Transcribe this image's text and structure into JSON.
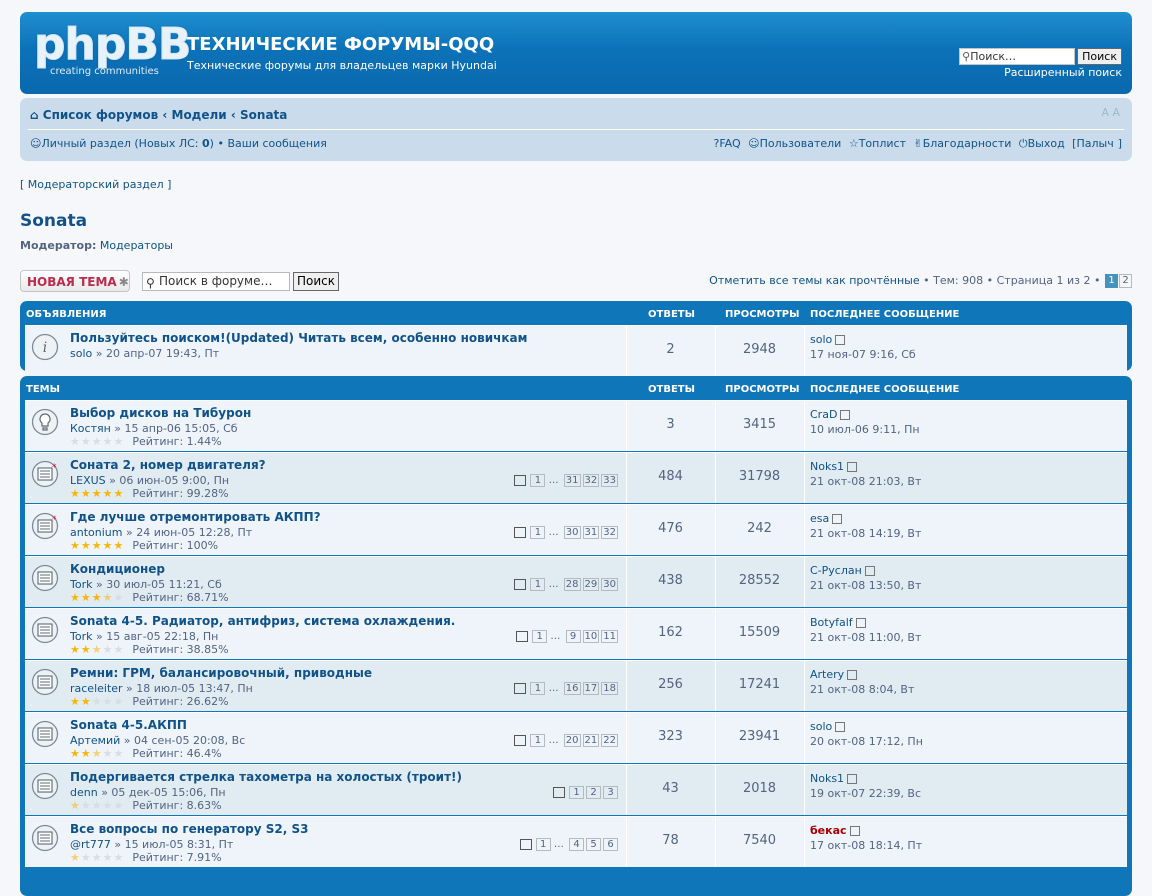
{
  "header": {
    "logo_main": "phpBB",
    "logo_sub": "creating communities",
    "site_title": "ТЕХНИЧЕСКИЕ ФОРУМЫ-QQQ",
    "site_desc": "Технические форумы для владельцев марки Hyundai",
    "search_placeholder": "Поиск…",
    "search_button": "Поиск",
    "advanced_search": "Расширенный поиск"
  },
  "navbar": {
    "crumbs": [
      "Список форумов",
      "Модели",
      "Sonata"
    ],
    "font_size": "A A",
    "personal": "Личный раздел",
    "new_pm_label": "(Новых ЛС: ",
    "new_pm_count": "0",
    "new_pm_close": ")",
    "bullet": "•",
    "your_posts": "Ваши сообщения",
    "faq": "FAQ",
    "users": "Пользователи",
    "toplist": "Топлист",
    "thanks": "Благодарности",
    "logout": "Выход",
    "user": "Палыч",
    "user_open": "[",
    "user_close": "]"
  },
  "mod_section": "[ Модераторский раздел ]",
  "forum": {
    "title": "Sonata",
    "moderator_label": "Модератор:",
    "moderator_value": "Модераторы"
  },
  "actions": {
    "new_topic": "НОВАЯ ТЕМА",
    "new_topic_icon": "star-icon",
    "forum_search_placeholder": "Поиск в форуме…",
    "forum_search_button": "Поиск",
    "mark_read": "Отметить все темы как прочтённые",
    "topics_count": "Тем: 908",
    "page_info": "Страница 1 из 2",
    "pages": [
      "1",
      "2"
    ]
  },
  "columns": {
    "announcements": "ОБЪЯВЛЕНИЯ",
    "topics": "ТЕМЫ",
    "replies": "ОТВЕТЫ",
    "views": "ПРОСМОТРЫ",
    "last_post": "ПОСЛЕДНЕЕ СООБЩЕНИЕ"
  },
  "announcements": [
    {
      "title": "Пользуйтесь поиском!(Updated) Читать всем, особенно новичкам",
      "author": "solo",
      "date": "20 апр-07 19:43, Пт",
      "replies": "2",
      "views": "2948",
      "last_author": "solo",
      "last_date": "17 ноя-07 9:16, Сб",
      "icon": "info-icon"
    }
  ],
  "topics": [
    {
      "title": "Выбор дисков на Тибурон",
      "author": "Костян",
      "date": "15 апр-06 15:05, Сб",
      "stars": 0,
      "rating_text": "Рейтинг: 1.44%",
      "pages": [],
      "replies": "3",
      "views": "3415",
      "last_author": "CraD",
      "last_date": "10 июл-06 9:11, Пн",
      "icon": "bulb-icon"
    },
    {
      "title": "Соната 2, номер двигателя?",
      "author": "LEXUS",
      "date": "06 июн-05 9:00, Пн",
      "stars": 5,
      "rating_text": "Рейтинг: 99.28%",
      "pages": [
        "1",
        "…",
        "31",
        "32",
        "33"
      ],
      "replies": "484",
      "views": "31798",
      "last_author": "Noks1",
      "last_date": "21 окт-08 21:03, Вт",
      "icon": "hot-topic-icon"
    },
    {
      "title": "Где лучше отремонтировать АКПП?",
      "author": "antonium",
      "date": "24 июн-05 12:28, Пт",
      "stars": 5,
      "rating_text": "Рейтинг: 100%",
      "pages": [
        "1",
        "…",
        "30",
        "31",
        "32"
      ],
      "replies": "476",
      "views": "242",
      "last_author": "esa",
      "last_date": "21 окт-08 14:19, Вт",
      "icon": "hot-topic-icon"
    },
    {
      "title": "Кондиционер",
      "author": "Tork",
      "date": "30 июл-05 11:21, Сб",
      "stars": 3.5,
      "rating_text": "Рейтинг: 68.71%",
      "pages": [
        "1",
        "…",
        "28",
        "29",
        "30"
      ],
      "replies": "438",
      "views": "28552",
      "last_author": "С-Руслан",
      "last_date": "21 окт-08 13:50, Вт",
      "icon": "topic-icon"
    },
    {
      "title": "Sonata 4-5. Радиатор, антифриз, система охлаждения.",
      "author": "Tork",
      "date": "15 авг-05 22:18, Пн",
      "stars": 2.5,
      "rating_text": "Рейтинг: 38.85%",
      "pages": [
        "1",
        "…",
        "9",
        "10",
        "11"
      ],
      "replies": "162",
      "views": "15509",
      "last_author": "Botyfalf",
      "last_date": "21 окт-08 11:00, Вт",
      "icon": "topic-icon"
    },
    {
      "title": "Ремни: ГРМ, балансировочный, приводные",
      "author": "raceleiter",
      "date": "18 июл-05 13:47, Пн",
      "stars": 2,
      "rating_text": "Рейтинг: 26.62%",
      "pages": [
        "1",
        "…",
        "16",
        "17",
        "18"
      ],
      "replies": "256",
      "views": "17241",
      "last_author": "Artery",
      "last_date": "21 окт-08 8:04, Вт",
      "icon": "topic-icon"
    },
    {
      "title": "Sonata 4-5.АКПП",
      "author": "Артемий",
      "date": "04 сен-05 20:08, Вс",
      "stars": 2.5,
      "rating_text": "Рейтинг: 46.4%",
      "pages": [
        "1",
        "…",
        "20",
        "21",
        "22"
      ],
      "replies": "323",
      "views": "23941",
      "last_author": "solo",
      "last_date": "20 окт-08 17:12, Пн",
      "icon": "topic-icon"
    },
    {
      "title": "Подергивается стрелка тахометра на холостых (троит!)",
      "author": "denn",
      "date": "05 дек-05 15:06, Пн",
      "stars": 0.5,
      "rating_text": "Рейтинг: 8.63%",
      "pages": [
        "1",
        "2",
        "3"
      ],
      "replies": "43",
      "views": "2018",
      "last_author": "Noks1",
      "last_date": "19 окт-07 22:39, Вс",
      "icon": "topic-icon"
    },
    {
      "title": "Все вопросы по генератору S2, S3",
      "author": "@rt777",
      "date": "15 июл-05 8:31, Пт",
      "stars": 0.5,
      "rating_text": "Рейтинг: 7.91%",
      "pages": [
        "1",
        "…",
        "4",
        "5",
        "6"
      ],
      "replies": "78",
      "views": "7540",
      "last_author": "бекас",
      "last_author_red": true,
      "last_date": "17 окт-08 18:14, Пт",
      "icon": "topic-icon"
    }
  ]
}
